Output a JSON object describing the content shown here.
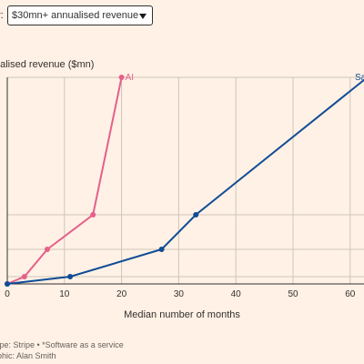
{
  "filter": {
    "label": "r:",
    "selected": "$30mn+ annualised revenue"
  },
  "footer": {
    "source": "tripe: Stripe • *Software as a service",
    "credit": "aphic: Alan Smith"
  },
  "colors": {
    "ai": "#e5608a",
    "saas": "#0f4c96",
    "grid": "#cec6b9",
    "axis": "#33302e"
  },
  "chart_data": {
    "type": "line",
    "ylabel": "ualised revenue ($mn)",
    "xlabel": "Median number of months",
    "xlim": [
      0,
      62
    ],
    "x_ticks": [
      0,
      10,
      20,
      30,
      40,
      50,
      60
    ],
    "y_gridlines": [
      0,
      1,
      5,
      10,
      30
    ],
    "y_tick_labels_visible": false,
    "ylim": [
      0,
      30
    ],
    "series": [
      {
        "name": "AI",
        "points": [
          [
            0,
            0
          ],
          [
            3,
            1
          ],
          [
            7,
            5
          ],
          [
            15,
            10
          ],
          [
            20,
            30
          ]
        ]
      },
      {
        "name": "Sa",
        "points": [
          [
            0,
            0
          ],
          [
            11,
            1
          ],
          [
            27,
            5
          ],
          [
            33,
            10
          ],
          [
            63,
            30
          ]
        ]
      }
    ]
  }
}
